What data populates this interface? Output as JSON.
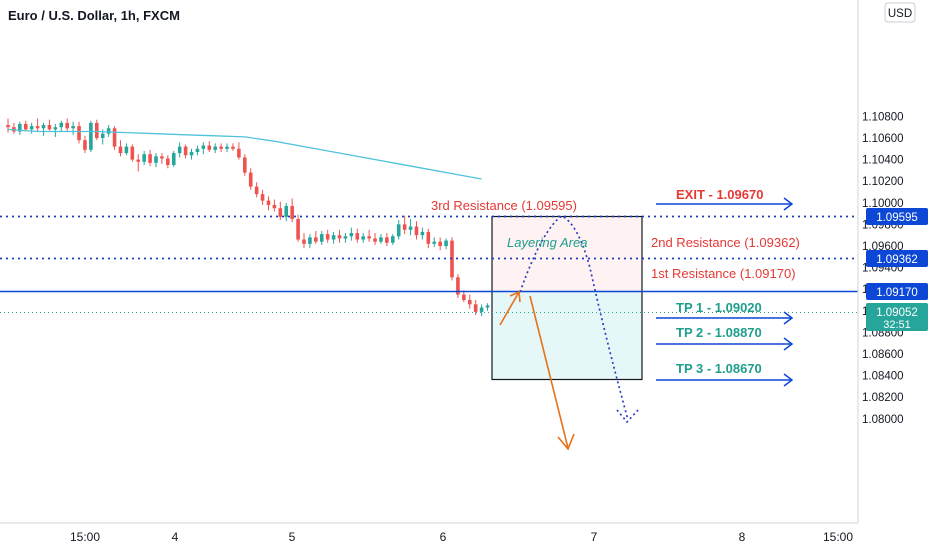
{
  "header": {
    "symbol_title": "Euro / U.S. Dollar, 1h, FXCM"
  },
  "currency_button": {
    "label": "USD"
  },
  "colors": {
    "bull": "#26a69a",
    "bear": "#ef5350",
    "ma": "#4fc3dc",
    "resistance_label": "#e53935",
    "tp_label": "#1e9e8c",
    "blue_line": "#0d47d6",
    "dotted": "#1a3fb5",
    "orange": "#e8711a",
    "axis_text": "#131722",
    "zone_top": "#fff2f2",
    "zone_bottom": "#e6f7f7",
    "price_tag_green": "#26a69a"
  },
  "annotations": {
    "layering_area": "Layering Area",
    "exit": "EXIT - 1.09670",
    "res3": "3rd Resistance (1.09595)",
    "res2": "2nd Resistance (1.09362)",
    "res1": "1st Resistance (1.09170)",
    "tp1": "TP 1 - 1.09020",
    "tp2": "TP 2 - 1.08870",
    "tp3": "TP 3 - 1.08670"
  },
  "price_tags": {
    "res3": "1.09595",
    "res2": "1.09362",
    "res1": "1.09170",
    "current_price": "1.09052",
    "countdown": "32:51"
  },
  "chart_data": {
    "type": "candlestick",
    "title": "Euro / U.S. Dollar, 1h, FXCM",
    "y_ticks": [
      1.108,
      1.106,
      1.104,
      1.102,
      1.1,
      1.098,
      1.096,
      1.094,
      1.092,
      1.09,
      1.088,
      1.086,
      1.084,
      1.082,
      1.08
    ],
    "y_tick_labels": [
      "1.10800",
      "1.10600",
      "1.10400",
      "1.10200",
      "1.10000",
      "1.09800",
      "1.09600",
      "1.09400",
      "1.09200",
      "1.09000",
      "1.08800",
      "1.08600",
      "1.08400",
      "1.08200",
      "1.08000"
    ],
    "x_ticks": [
      "15:00",
      "4",
      "5",
      "6",
      "7",
      "8",
      "15:00"
    ],
    "ylim": [
      1.0786,
      1.1081
    ],
    "grid": false,
    "horizontal_levels": [
      {
        "name": "3rd Resistance",
        "value": 1.09595,
        "style": "dotted"
      },
      {
        "name": "2nd Resistance",
        "value": 1.09362,
        "style": "dotted"
      },
      {
        "name": "1st Resistance",
        "value": 1.0917,
        "style": "solid"
      },
      {
        "name": "Current price",
        "value": 1.09052,
        "style": "dotted-teal"
      }
    ],
    "targets": [
      {
        "name": "EXIT",
        "value": 1.0967
      },
      {
        "name": "TP 1",
        "value": 1.0902
      },
      {
        "name": "TP 2",
        "value": 1.0887
      },
      {
        "name": "TP 3",
        "value": 1.0867
      }
    ],
    "candles": [
      {
        "o": 1.1072,
        "h": 1.1078,
        "l": 1.1065,
        "c": 1.107
      },
      {
        "o": 1.107,
        "h": 1.1074,
        "l": 1.1064,
        "c": 1.1066
      },
      {
        "o": 1.1066,
        "h": 1.1075,
        "l": 1.1063,
        "c": 1.1073
      },
      {
        "o": 1.1073,
        "h": 1.1076,
        "l": 1.1066,
        "c": 1.1068
      },
      {
        "o": 1.1068,
        "h": 1.1074,
        "l": 1.1064,
        "c": 1.1071
      },
      {
        "o": 1.1071,
        "h": 1.1078,
        "l": 1.1066,
        "c": 1.1069
      },
      {
        "o": 1.1069,
        "h": 1.1074,
        "l": 1.1062,
        "c": 1.1072
      },
      {
        "o": 1.1072,
        "h": 1.1077,
        "l": 1.1067,
        "c": 1.1068
      },
      {
        "o": 1.1068,
        "h": 1.1073,
        "l": 1.1061,
        "c": 1.107
      },
      {
        "o": 1.107,
        "h": 1.1076,
        "l": 1.1066,
        "c": 1.1074
      },
      {
        "o": 1.1074,
        "h": 1.1078,
        "l": 1.1066,
        "c": 1.1069
      },
      {
        "o": 1.1069,
        "h": 1.1075,
        "l": 1.1063,
        "c": 1.1071
      },
      {
        "o": 1.1071,
        "h": 1.1075,
        "l": 1.1055,
        "c": 1.1058
      },
      {
        "o": 1.1058,
        "h": 1.1062,
        "l": 1.1046,
        "c": 1.1049
      },
      {
        "o": 1.1049,
        "h": 1.1076,
        "l": 1.1047,
        "c": 1.1074
      },
      {
        "o": 1.1074,
        "h": 1.1077,
        "l": 1.1058,
        "c": 1.106
      },
      {
        "o": 1.106,
        "h": 1.1068,
        "l": 1.1054,
        "c": 1.1064
      },
      {
        "o": 1.1064,
        "h": 1.1072,
        "l": 1.1061,
        "c": 1.1069
      },
      {
        "o": 1.1069,
        "h": 1.1071,
        "l": 1.1049,
        "c": 1.1052
      },
      {
        "o": 1.1052,
        "h": 1.1058,
        "l": 1.1043,
        "c": 1.1046
      },
      {
        "o": 1.1046,
        "h": 1.1055,
        "l": 1.1044,
        "c": 1.1052
      },
      {
        "o": 1.1052,
        "h": 1.1054,
        "l": 1.1038,
        "c": 1.104
      },
      {
        "o": 1.104,
        "h": 1.1045,
        "l": 1.1029,
        "c": 1.1038
      },
      {
        "o": 1.1038,
        "h": 1.1048,
        "l": 1.1035,
        "c": 1.1045
      },
      {
        "o": 1.1045,
        "h": 1.1049,
        "l": 1.1034,
        "c": 1.1037
      },
      {
        "o": 1.1037,
        "h": 1.1046,
        "l": 1.1033,
        "c": 1.1043
      },
      {
        "o": 1.1043,
        "h": 1.1046,
        "l": 1.1036,
        "c": 1.1041
      },
      {
        "o": 1.1041,
        "h": 1.1044,
        "l": 1.1032,
        "c": 1.1035
      },
      {
        "o": 1.1035,
        "h": 1.1048,
        "l": 1.1033,
        "c": 1.1046
      },
      {
        "o": 1.1046,
        "h": 1.1056,
        "l": 1.1042,
        "c": 1.1052
      },
      {
        "o": 1.1052,
        "h": 1.1054,
        "l": 1.1041,
        "c": 1.1044
      },
      {
        "o": 1.1044,
        "h": 1.105,
        "l": 1.104,
        "c": 1.1047
      },
      {
        "o": 1.1047,
        "h": 1.1053,
        "l": 1.1044,
        "c": 1.105
      },
      {
        "o": 1.105,
        "h": 1.1056,
        "l": 1.1045,
        "c": 1.1053
      },
      {
        "o": 1.1053,
        "h": 1.1057,
        "l": 1.1047,
        "c": 1.1049
      },
      {
        "o": 1.1049,
        "h": 1.1055,
        "l": 1.1046,
        "c": 1.1052
      },
      {
        "o": 1.1052,
        "h": 1.1055,
        "l": 1.1047,
        "c": 1.105
      },
      {
        "o": 1.105,
        "h": 1.1055,
        "l": 1.1047,
        "c": 1.1052
      },
      {
        "o": 1.1052,
        "h": 1.1055,
        "l": 1.1048,
        "c": 1.105
      },
      {
        "o": 1.105,
        "h": 1.1056,
        "l": 1.104,
        "c": 1.1042
      },
      {
        "o": 1.1042,
        "h": 1.1045,
        "l": 1.1025,
        "c": 1.1028
      },
      {
        "o": 1.1028,
        "h": 1.1032,
        "l": 1.1012,
        "c": 1.1015
      },
      {
        "o": 1.1015,
        "h": 1.1019,
        "l": 1.1005,
        "c": 1.1008
      },
      {
        "o": 1.1008,
        "h": 1.1012,
        "l": 1.0998,
        "c": 1.1002
      },
      {
        "o": 1.1002,
        "h": 1.1006,
        "l": 1.0993,
        "c": 1.0998
      },
      {
        "o": 1.0998,
        "h": 1.1003,
        "l": 1.0992,
        "c": 1.0995
      },
      {
        "o": 1.0995,
        "h": 1.1001,
        "l": 1.0984,
        "c": 1.0987
      },
      {
        "o": 1.0987,
        "h": 1.1,
        "l": 1.0983,
        "c": 1.0997
      },
      {
        "o": 1.0997,
        "h": 1.1004,
        "l": 1.0982,
        "c": 1.0985
      },
      {
        "o": 1.0985,
        "h": 1.0989,
        "l": 1.0964,
        "c": 1.0966
      },
      {
        "o": 1.0966,
        "h": 1.0972,
        "l": 1.0958,
        "c": 1.0962
      },
      {
        "o": 1.0962,
        "h": 1.0971,
        "l": 1.0958,
        "c": 1.0968
      },
      {
        "o": 1.0968,
        "h": 1.0974,
        "l": 1.0962,
        "c": 1.0964
      },
      {
        "o": 1.0964,
        "h": 1.0974,
        "l": 1.0961,
        "c": 1.0971
      },
      {
        "o": 1.0971,
        "h": 1.0975,
        "l": 1.0963,
        "c": 1.0966
      },
      {
        "o": 1.0966,
        "h": 1.0973,
        "l": 1.0962,
        "c": 1.097
      },
      {
        "o": 1.097,
        "h": 1.0975,
        "l": 1.0963,
        "c": 1.0967
      },
      {
        "o": 1.0967,
        "h": 1.0972,
        "l": 1.0963,
        "c": 1.0969
      },
      {
        "o": 1.0969,
        "h": 1.0977,
        "l": 1.0965,
        "c": 1.0972
      },
      {
        "o": 1.0972,
        "h": 1.0976,
        "l": 1.0963,
        "c": 1.0966
      },
      {
        "o": 1.0966,
        "h": 1.0972,
        "l": 1.0963,
        "c": 1.0969
      },
      {
        "o": 1.0969,
        "h": 1.0975,
        "l": 1.0964,
        "c": 1.0967
      },
      {
        "o": 1.0967,
        "h": 1.0972,
        "l": 1.0961,
        "c": 1.0964
      },
      {
        "o": 1.0964,
        "h": 1.0971,
        "l": 1.0962,
        "c": 1.0968
      },
      {
        "o": 1.0968,
        "h": 1.0972,
        "l": 1.096,
        "c": 1.0963
      },
      {
        "o": 1.0963,
        "h": 1.0971,
        "l": 1.0961,
        "c": 1.0969
      },
      {
        "o": 1.0969,
        "h": 1.0984,
        "l": 1.0966,
        "c": 1.098
      },
      {
        "o": 1.098,
        "h": 1.0988,
        "l": 1.0971,
        "c": 1.0975
      },
      {
        "o": 1.0975,
        "h": 1.0985,
        "l": 1.097,
        "c": 1.0978
      },
      {
        "o": 1.0978,
        "h": 1.0983,
        "l": 1.0966,
        "c": 1.097
      },
      {
        "o": 1.097,
        "h": 1.0977,
        "l": 1.0966,
        "c": 1.0973
      },
      {
        "o": 1.0973,
        "h": 1.0976,
        "l": 1.0958,
        "c": 1.0962
      },
      {
        "o": 1.0962,
        "h": 1.0968,
        "l": 1.0959,
        "c": 1.0964
      },
      {
        "o": 1.0964,
        "h": 1.0968,
        "l": 1.0956,
        "c": 1.096
      },
      {
        "o": 1.096,
        "h": 1.0967,
        "l": 1.0957,
        "c": 1.0965
      },
      {
        "o": 1.0965,
        "h": 1.0968,
        "l": 1.0928,
        "c": 1.0931
      },
      {
        "o": 1.0931,
        "h": 1.0934,
        "l": 1.0912,
        "c": 1.0915
      },
      {
        "o": 1.0915,
        "h": 1.0919,
        "l": 1.0908,
        "c": 1.091
      },
      {
        "o": 1.091,
        "h": 1.0915,
        "l": 1.0902,
        "c": 1.0906
      },
      {
        "o": 1.0906,
        "h": 1.091,
        "l": 1.0896,
        "c": 1.0899
      },
      {
        "o": 1.0899,
        "h": 1.0906,
        "l": 1.0895,
        "c": 1.0903
      },
      {
        "o": 1.0903,
        "h": 1.0907,
        "l": 1.09,
        "c": 1.0905
      }
    ],
    "moving_average": [
      {
        "i": 0,
        "v": 1.1068
      },
      {
        "i": 5,
        "v": 1.1066
      },
      {
        "i": 10,
        "v": 1.1066
      },
      {
        "i": 15,
        "v": 1.1066
      },
      {
        "i": 20,
        "v": 1.1065
      },
      {
        "i": 25,
        "v": 1.1064
      },
      {
        "i": 30,
        "v": 1.1063
      },
      {
        "i": 35,
        "v": 1.1062
      },
      {
        "i": 40,
        "v": 1.1061
      },
      {
        "i": 45,
        "v": 1.1057
      },
      {
        "i": 50,
        "v": 1.1052
      },
      {
        "i": 55,
        "v": 1.1047
      },
      {
        "i": 60,
        "v": 1.1042
      },
      {
        "i": 65,
        "v": 1.1037
      },
      {
        "i": 70,
        "v": 1.1032
      },
      {
        "i": 75,
        "v": 1.1027
      },
      {
        "i": 80,
        "v": 1.1022
      }
    ]
  }
}
